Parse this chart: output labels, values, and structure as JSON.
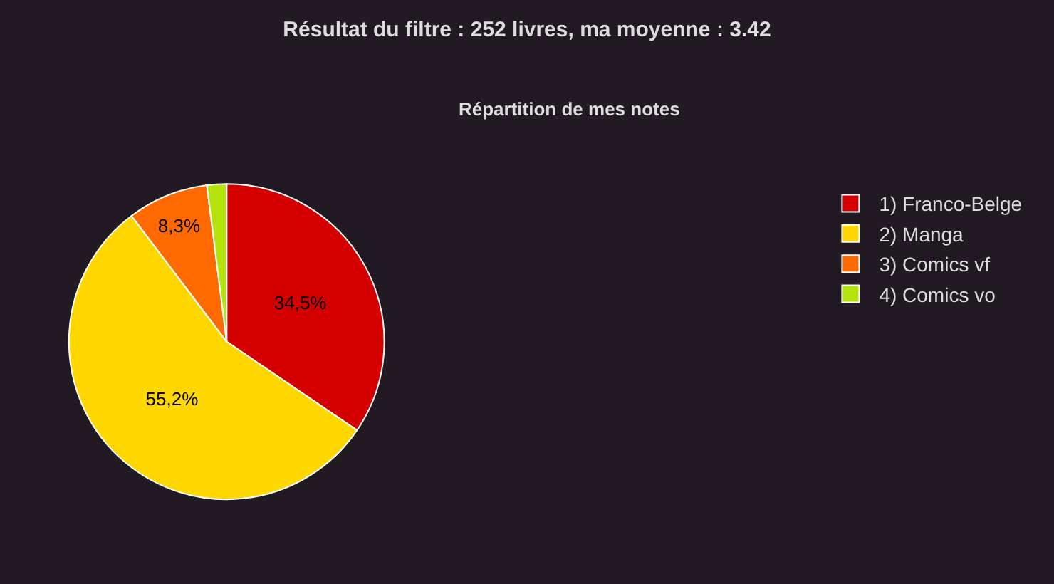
{
  "chart_data": {
    "type": "pie",
    "title": "Résultat du filtre : 252 livres, ma moyenne : 3.42",
    "subtitle": "Répartition de mes notes",
    "categories": [
      "1) Franco-Belge",
      "2) Manga",
      "3) Comics vf",
      "4) Comics vo"
    ],
    "values": [
      34.5,
      55.2,
      8.3,
      2.0
    ],
    "colors": [
      "#d40000",
      "#ffd700",
      "#ff6a00",
      "#b5e30c"
    ],
    "value_labels": [
      "34,5%",
      "55,2%",
      "8,3%",
      null
    ],
    "legend": "right"
  }
}
